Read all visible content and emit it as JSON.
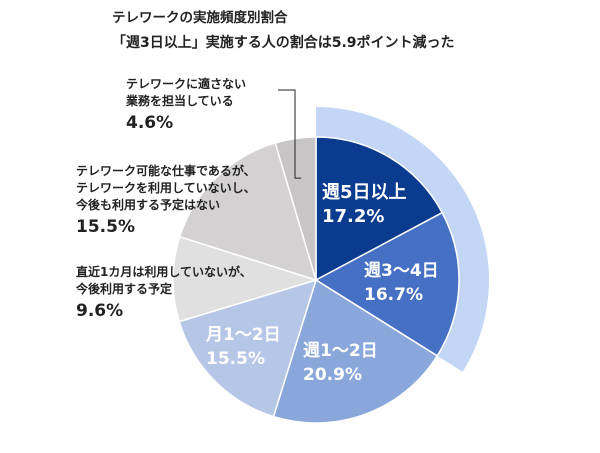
{
  "header": {
    "title": "テレワークの実施頻度別割合",
    "subtitle": "「週3日以上」実施する人の割合は5.9ポイント減った"
  },
  "chart_data": {
    "type": "pie",
    "title": "テレワークの実施頻度別割合",
    "subtitle": "「週3日以上」実施する人の割合は5.9ポイント減った",
    "slices": [
      {
        "label": "週5日以上",
        "value": 17.2,
        "value_label": "17.2%",
        "color": "#0b3b8f"
      },
      {
        "label": "週3～4日",
        "value": 16.7,
        "value_label": "16.7%",
        "color": "#4570c4"
      },
      {
        "label": "週1～2日",
        "value": 20.9,
        "value_label": "20.9%",
        "color": "#8aa7dc"
      },
      {
        "label": "月1～2日",
        "value": 15.5,
        "value_label": "15.5%",
        "color": "#b6c6e6"
      },
      {
        "label": "直近1カ月は利用していないが、\n今後利用する予定",
        "value": 9.6,
        "value_label": "9.6%",
        "color": "#e0e0e0"
      },
      {
        "label": "テレワーク可能な仕事であるが、\nテレワークを利用していないし、\n今後も利用する予定はない",
        "value": 15.5,
        "value_label": "15.5%",
        "color": "#d3d1d1"
      },
      {
        "label": "テレワークに適さない\n業務を担当している",
        "value": 4.6,
        "value_label": "4.6%",
        "color": "#c7c5c5"
      }
    ],
    "highlight": {
      "label": "週3日以上",
      "value": 33.9,
      "color": "#c4d6f5"
    }
  }
}
